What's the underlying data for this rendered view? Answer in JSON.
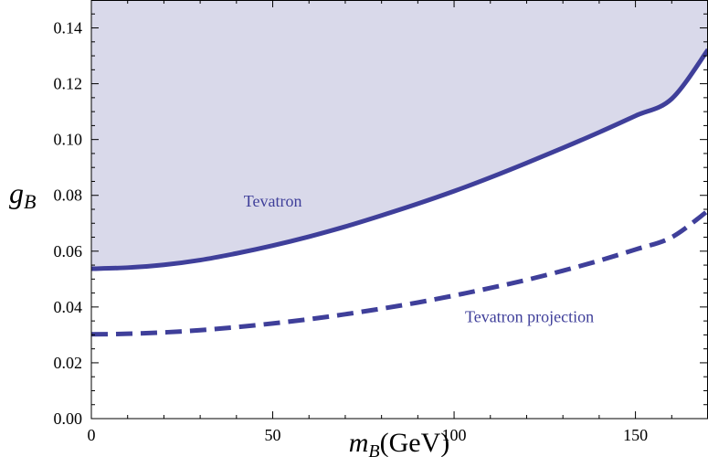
{
  "chart_data": {
    "type": "area",
    "title": "",
    "xlabel": "m_B(GeV)",
    "xlabel_parts": {
      "main": "m",
      "sub": "B",
      "suffix": "(GeV)"
    },
    "ylabel": "g_B",
    "ylabel_parts": {
      "main": "g",
      "sub": "B"
    },
    "xlim": [
      0,
      170
    ],
    "ylim": [
      0,
      0.15
    ],
    "xticks": [
      0,
      50,
      100,
      150
    ],
    "xtick_labels": [
      "0",
      "50",
      "100",
      "150"
    ],
    "yticks": [
      0,
      0.02,
      0.04,
      0.06,
      0.08,
      0.1,
      0.12,
      0.14
    ],
    "ytick_labels": [
      "0.00",
      "0.02",
      "0.04",
      "0.06",
      "0.08",
      "0.10",
      "0.12",
      "0.14"
    ],
    "grid": false,
    "series": [
      {
        "name": "Tevatron",
        "style": "solid",
        "fill_above": true,
        "x": [
          0,
          10,
          20,
          30,
          40,
          50,
          60,
          70,
          80,
          90,
          100,
          110,
          120,
          130,
          140,
          150,
          160,
          170
        ],
        "values": [
          0.0537,
          0.0541,
          0.0551,
          0.0568,
          0.0592,
          0.062,
          0.0652,
          0.0688,
          0.0728,
          0.077,
          0.0815,
          0.0864,
          0.0916,
          0.097,
          0.1026,
          0.1085,
          0.1146,
          0.1322
        ]
      },
      {
        "name": "Tevatron projection",
        "style": "dashed",
        "fill_above": false,
        "x": [
          0,
          10,
          20,
          30,
          40,
          50,
          60,
          70,
          80,
          90,
          100,
          110,
          120,
          130,
          140,
          150,
          160,
          170
        ],
        "values": [
          0.0302,
          0.0304,
          0.0309,
          0.0317,
          0.0328,
          0.0341,
          0.0356,
          0.0374,
          0.0394,
          0.0416,
          0.0441,
          0.0468,
          0.0497,
          0.053,
          0.0566,
          0.0606,
          0.065,
          0.0745
        ]
      }
    ],
    "annotations": [
      {
        "text": "Tevatron",
        "x": 42,
        "y": 0.076
      },
      {
        "text": "Tevatron projection",
        "x": 103,
        "y": 0.0345
      }
    ],
    "colors": {
      "line": "#3f3f9a",
      "fill": "#d9d9ea"
    }
  }
}
